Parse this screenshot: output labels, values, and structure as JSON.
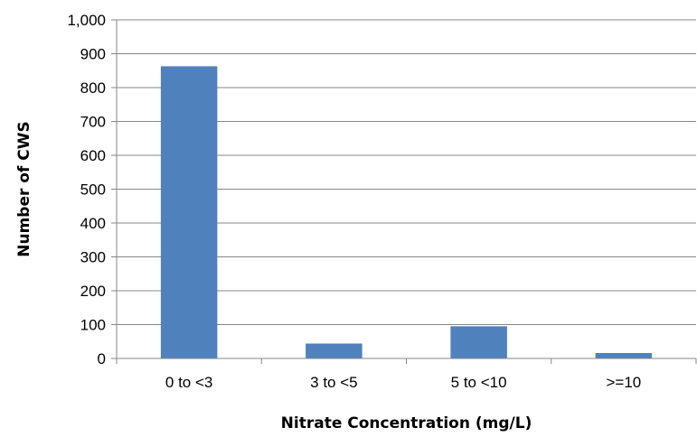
{
  "chart_data": {
    "type": "bar",
    "categories": [
      "0 to <3",
      "3 to <5",
      "5 to <10",
      ">=10"
    ],
    "values": [
      863,
      44,
      95,
      16
    ],
    "xlabel": "Nitrate Concentration (mg/L)",
    "ylabel": "Number of CWS",
    "ylim": [
      0,
      1000
    ],
    "yticks": [
      0,
      100,
      200,
      300,
      400,
      500,
      600,
      700,
      800,
      900,
      1000
    ],
    "ytick_labels": [
      "0",
      "100",
      "200",
      "300",
      "400",
      "500",
      "600",
      "700",
      "800",
      "900",
      "1,000"
    ],
    "grid": true,
    "legend": "none",
    "bar_color": "#4F81BD",
    "grid_color": "#878787"
  }
}
